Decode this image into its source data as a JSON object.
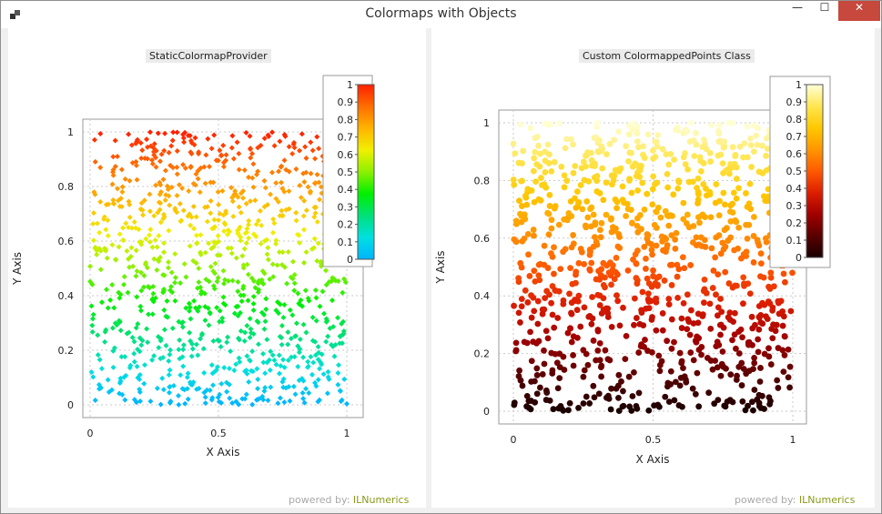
{
  "window": {
    "title": "Colormaps with Objects",
    "controls": {
      "minimize": "—",
      "maximize": "☐",
      "close": "✕"
    }
  },
  "footer": {
    "powered_by": "powered by:",
    "brand": "ILNumerics"
  },
  "chart_data": [
    {
      "type": "scatter",
      "title": "StaticColormapProvider",
      "xlabel": "X Axis",
      "ylabel": "Y Axis",
      "xlim": [
        0,
        1
      ],
      "ylim": [
        0,
        1
      ],
      "xticks": [
        "0",
        "0.5",
        "1"
      ],
      "yticks": [
        "0",
        "0.2",
        "0.4",
        "0.6",
        "0.8",
        "1"
      ],
      "grid": true,
      "marker": "diamond",
      "colormap": "jet",
      "colorbar": {
        "placement": "top-right",
        "ticks": [
          "1",
          "0.9",
          "0.8",
          "0.7",
          "0.6",
          "0.5",
          "0.4",
          "0.3",
          "0.2",
          "0.1",
          "0"
        ],
        "stops": [
          "#00b4ff",
          "#00e0e0",
          "#00e07a",
          "#00f000",
          "#8cf000",
          "#f0f000",
          "#ffb400",
          "#ff6e00",
          "#ff1e00"
        ]
      },
      "point_count": 1000,
      "distribution": "uniform random x and y in [0,1], color mapped from y"
    },
    {
      "type": "scatter",
      "title": "Custom ColormappedPoints Class",
      "xlabel": "X Axis",
      "ylabel": "Y Axis",
      "xlim": [
        0,
        1
      ],
      "ylim": [
        0,
        1
      ],
      "xticks": [
        "0",
        "0.5",
        "1"
      ],
      "yticks": [
        "0",
        "0.2",
        "0.4",
        "0.6",
        "0.8",
        "1"
      ],
      "grid": true,
      "marker": "circle",
      "colormap": "hot",
      "colorbar": {
        "placement": "top-right",
        "ticks": [
          "1",
          "0.9",
          "0.8",
          "0.7",
          "0.6",
          "0.5",
          "0.4",
          "0.3",
          "0.2",
          "0.1",
          "0"
        ],
        "stops": [
          "#1a0000",
          "#5a0000",
          "#a00000",
          "#dc1e00",
          "#ff5a00",
          "#ff9600",
          "#ffc800",
          "#ffe650",
          "#ffffd8"
        ]
      },
      "point_count": 1000,
      "distribution": "uniform random x and y in [0,1], color mapped from y"
    }
  ]
}
